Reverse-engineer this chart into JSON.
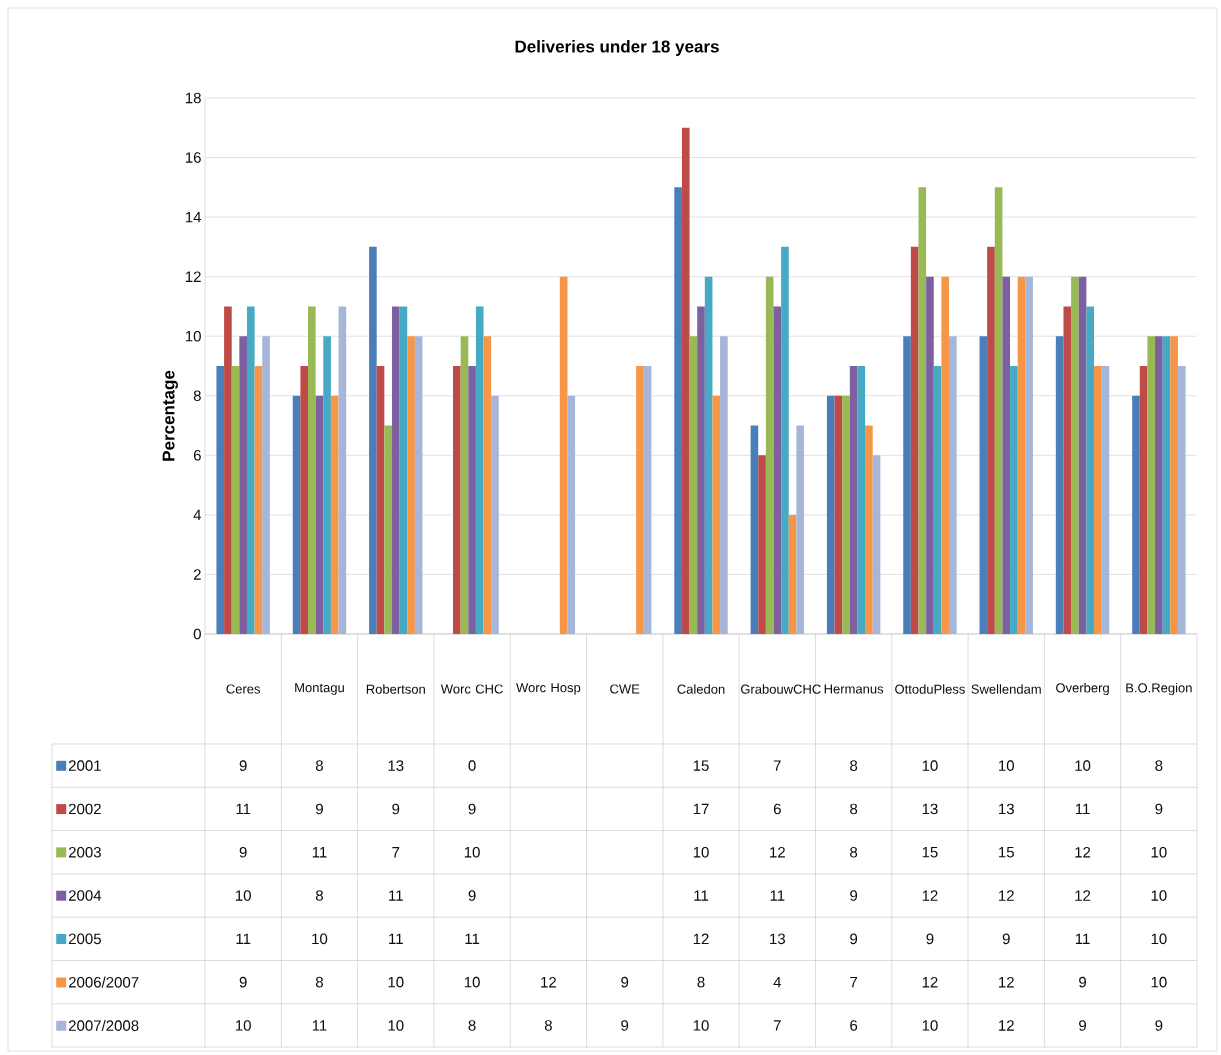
{
  "chart_data": {
    "type": "bar",
    "title": "Deliveries under 18 years",
    "ylabel": "Percentage",
    "categories": [
      "Ceres",
      "Montagu",
      "Robertson",
      "Worc CHC",
      "Worc Hosp",
      "CWE",
      "Caledon",
      "GrabouwCHC",
      "Hermanus",
      "OttoduPless",
      "Swellendam",
      "Overberg",
      "B.O.Region"
    ],
    "series": [
      {
        "name": "2001",
        "color": "#4a7ebb",
        "values": [
          9,
          8,
          13,
          0,
          null,
          null,
          15,
          7,
          8,
          10,
          10,
          10,
          8
        ]
      },
      {
        "name": "2002",
        "color": "#be4b48",
        "values": [
          11,
          9,
          9,
          9,
          null,
          null,
          17,
          6,
          8,
          13,
          13,
          11,
          9
        ]
      },
      {
        "name": "2003",
        "color": "#98b954",
        "values": [
          9,
          11,
          7,
          10,
          null,
          null,
          10,
          12,
          8,
          15,
          15,
          12,
          10
        ]
      },
      {
        "name": "2004",
        "color": "#7d60a0",
        "values": [
          10,
          8,
          11,
          9,
          null,
          null,
          11,
          11,
          9,
          12,
          12,
          12,
          10
        ]
      },
      {
        "name": "2005",
        "color": "#46aac5",
        "values": [
          11,
          10,
          11,
          11,
          null,
          null,
          12,
          13,
          9,
          9,
          9,
          11,
          10
        ]
      },
      {
        "name": "2006/2007",
        "color": "#f79646",
        "values": [
          9,
          8,
          10,
          10,
          12,
          9,
          8,
          4,
          7,
          12,
          12,
          9,
          10
        ]
      },
      {
        "name": "2007/2008",
        "color": "#a5b6d9",
        "values": [
          10,
          11,
          10,
          8,
          8,
          9,
          10,
          7,
          6,
          10,
          12,
          9,
          9
        ]
      }
    ],
    "ylim": [
      0,
      18
    ],
    "yticks": [
      0,
      2,
      4,
      6,
      8,
      10,
      12,
      14,
      16,
      18
    ],
    "grid": "y",
    "legend": "bottom left",
    "data_labels": true
  }
}
